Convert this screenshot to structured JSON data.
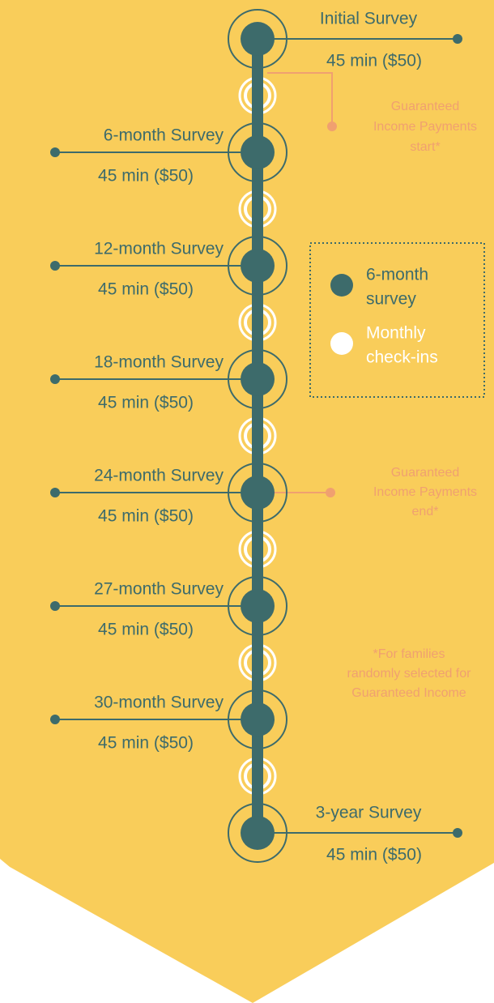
{
  "surveys": [
    {
      "label": "Initial Survey",
      "detail": "45 min ($50)"
    },
    {
      "label": "6-month Survey",
      "detail": "45 min ($50)"
    },
    {
      "label": "12-month Survey",
      "detail": "45 min ($50)"
    },
    {
      "label": "18-month Survey",
      "detail": "45 min ($50)"
    },
    {
      "label": "24-month Survey",
      "detail": "45 min ($50)"
    },
    {
      "label": "27-month Survey",
      "detail": "45 min ($50)"
    },
    {
      "label": "30-month Survey",
      "detail": "45 min ($50)"
    },
    {
      "label": "3-year Survey",
      "detail": "45 min ($50)"
    }
  ],
  "legend": {
    "survey": [
      "6-month",
      "survey"
    ],
    "checkin": [
      "Monthly",
      "check-ins"
    ]
  },
  "annotations": {
    "start": [
      "Guaranteed",
      "Income Payments",
      "start*"
    ],
    "end": [
      "Guaranteed",
      "Income Payments",
      "end*"
    ],
    "footnote": [
      "*For families",
      "randomly selected for",
      "Guaranteed Income"
    ]
  }
}
